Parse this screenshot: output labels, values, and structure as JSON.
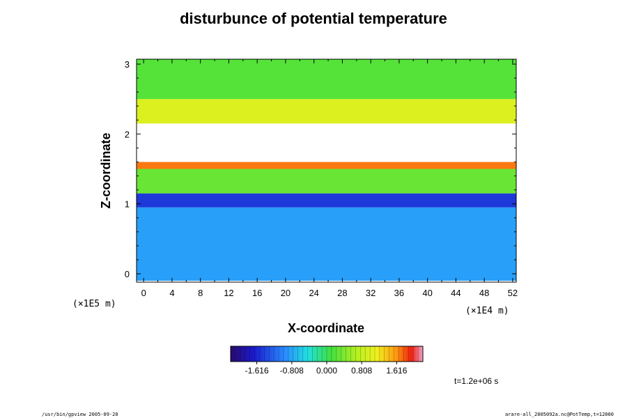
{
  "chart_data": {
    "type": "heatmap",
    "title": "disturbunce of potential temperature",
    "xlabel": "X-coordinate",
    "ylabel": "Z-coordinate",
    "x_unit": "(×1E4 m)",
    "y_unit": "(×1E5 m)",
    "xlim": [
      -1,
      52.5
    ],
    "ylim": [
      -0.12,
      3.07
    ],
    "xticks": [
      0,
      4,
      8,
      12,
      16,
      20,
      24,
      28,
      32,
      36,
      40,
      44,
      48,
      52
    ],
    "yticks": [
      0,
      1,
      2,
      3
    ],
    "colorbar": {
      "ticks": [
        "-1.616",
        "-0.808",
        "0.000",
        "0.808",
        "1.616"
      ],
      "tick_values": [
        -1.616,
        -0.808,
        0.0,
        0.808,
        1.616
      ],
      "range": [
        -2.222,
        2.222
      ]
    },
    "field_layers": [
      {
        "z": [
          -0.1,
          0.95
        ],
        "value": -0.85,
        "desc_value": "negative disturbance (blue)"
      },
      {
        "z": [
          0.95,
          1.15
        ],
        "value": -1.5
      },
      {
        "z": [
          1.15,
          1.5
        ],
        "value": 0.3
      },
      {
        "z": [
          1.5,
          1.6
        ],
        "value": 1.7
      },
      {
        "z": [
          1.6,
          2.15
        ],
        "value": null
      },
      {
        "z": [
          2.15,
          2.5
        ],
        "value": 1.0
      },
      {
        "z": [
          2.5,
          3.07
        ],
        "value": 0.2
      }
    ],
    "time_label": "t=1.2e+06 s"
  },
  "footer": {
    "left": "/usr/bin/gpview 2005-09-20",
    "right": "arare-all_2005092a.nc@PotTemp,t=12000"
  },
  "colors": {
    "background": "#ffffff",
    "frame": "#000000"
  }
}
